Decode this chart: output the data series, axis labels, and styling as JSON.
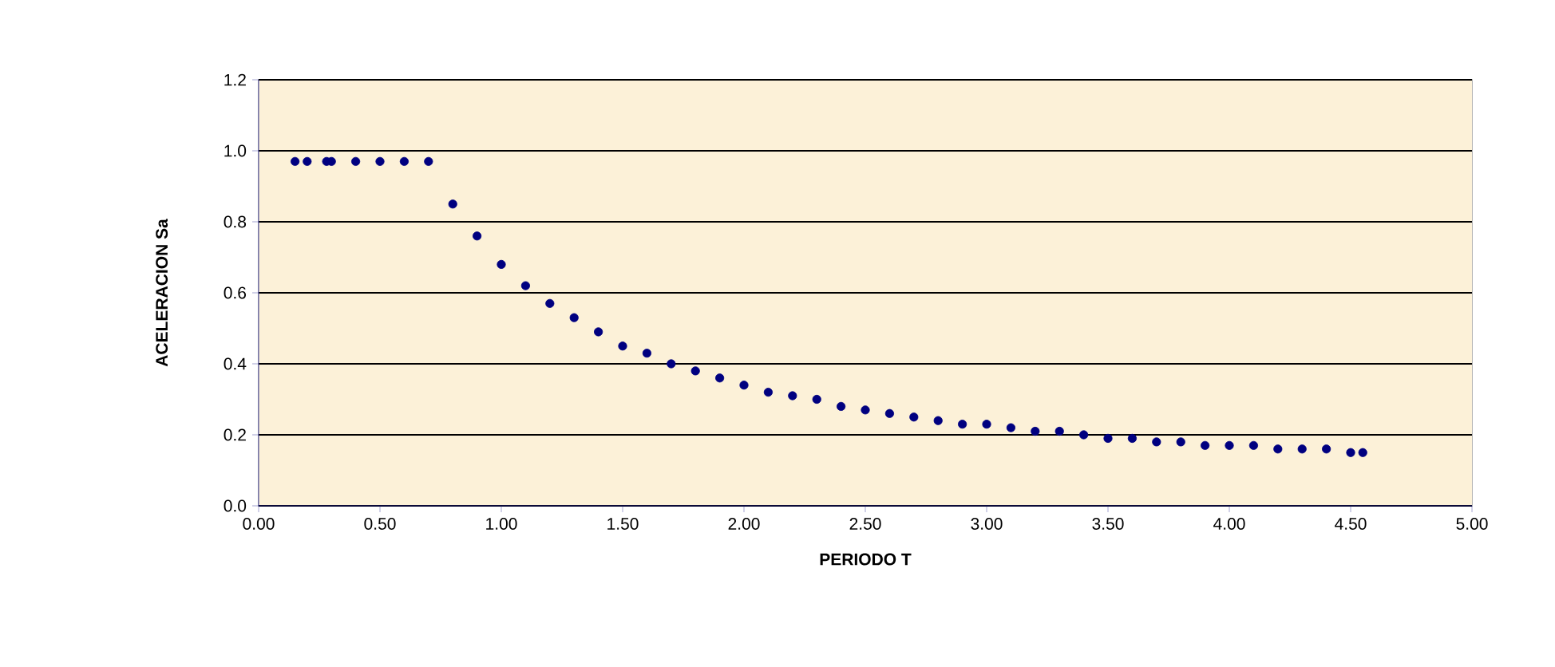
{
  "chart_data": {
    "type": "scatter",
    "xlabel": "PERIODO T",
    "ylabel": "ACELERACION Sa",
    "x": [
      0.15,
      0.2,
      0.28,
      0.3,
      0.4,
      0.5,
      0.6,
      0.7,
      0.8,
      0.9,
      1.0,
      1.1,
      1.2,
      1.3,
      1.4,
      1.5,
      1.6,
      1.7,
      1.8,
      1.9,
      2.0,
      2.1,
      2.2,
      2.3,
      2.4,
      2.5,
      2.6,
      2.7,
      2.8,
      2.9,
      3.0,
      3.1,
      3.2,
      3.3,
      3.4,
      3.5,
      3.6,
      3.7,
      3.8,
      3.9,
      4.0,
      4.1,
      4.2,
      4.3,
      4.4,
      4.5,
      4.55
    ],
    "values": [
      0.97,
      0.97,
      0.97,
      0.97,
      0.97,
      0.97,
      0.97,
      0.97,
      0.85,
      0.76,
      0.68,
      0.62,
      0.57,
      0.53,
      0.49,
      0.45,
      0.43,
      0.4,
      0.38,
      0.36,
      0.34,
      0.32,
      0.31,
      0.3,
      0.28,
      0.27,
      0.26,
      0.25,
      0.24,
      0.23,
      0.23,
      0.22,
      0.21,
      0.21,
      0.2,
      0.19,
      0.19,
      0.18,
      0.18,
      0.17,
      0.17,
      0.17,
      0.16,
      0.16,
      0.16,
      0.15,
      0.15
    ],
    "color": "#000080",
    "marker": "circle",
    "grid": "y",
    "xlim": [
      0,
      5
    ],
    "ylim": [
      0,
      1.2
    ],
    "xticks": [
      {
        "value": 0,
        "label": "0.00"
      },
      {
        "value": 0.5,
        "label": "0.50"
      },
      {
        "value": 1,
        "label": "1.00"
      },
      {
        "value": 1.5,
        "label": "1.50"
      },
      {
        "value": 2,
        "label": "2.00"
      },
      {
        "value": 2.5,
        "label": "2.50"
      },
      {
        "value": 3,
        "label": "3.00"
      },
      {
        "value": 3.5,
        "label": "3.50"
      },
      {
        "value": 4,
        "label": "4.00"
      },
      {
        "value": 4.5,
        "label": "4.50"
      },
      {
        "value": 5,
        "label": "5.00"
      }
    ],
    "yticks": [
      {
        "value": 0,
        "label": "0.0"
      },
      {
        "value": 0.2,
        "label": "0.2"
      },
      {
        "value": 0.4,
        "label": "0.4"
      },
      {
        "value": 0.6,
        "label": "0.6"
      },
      {
        "value": 0.8,
        "label": "0.8"
      },
      {
        "value": 1,
        "label": "1.0"
      },
      {
        "value": 1.2,
        "label": "1.2"
      }
    ]
  }
}
